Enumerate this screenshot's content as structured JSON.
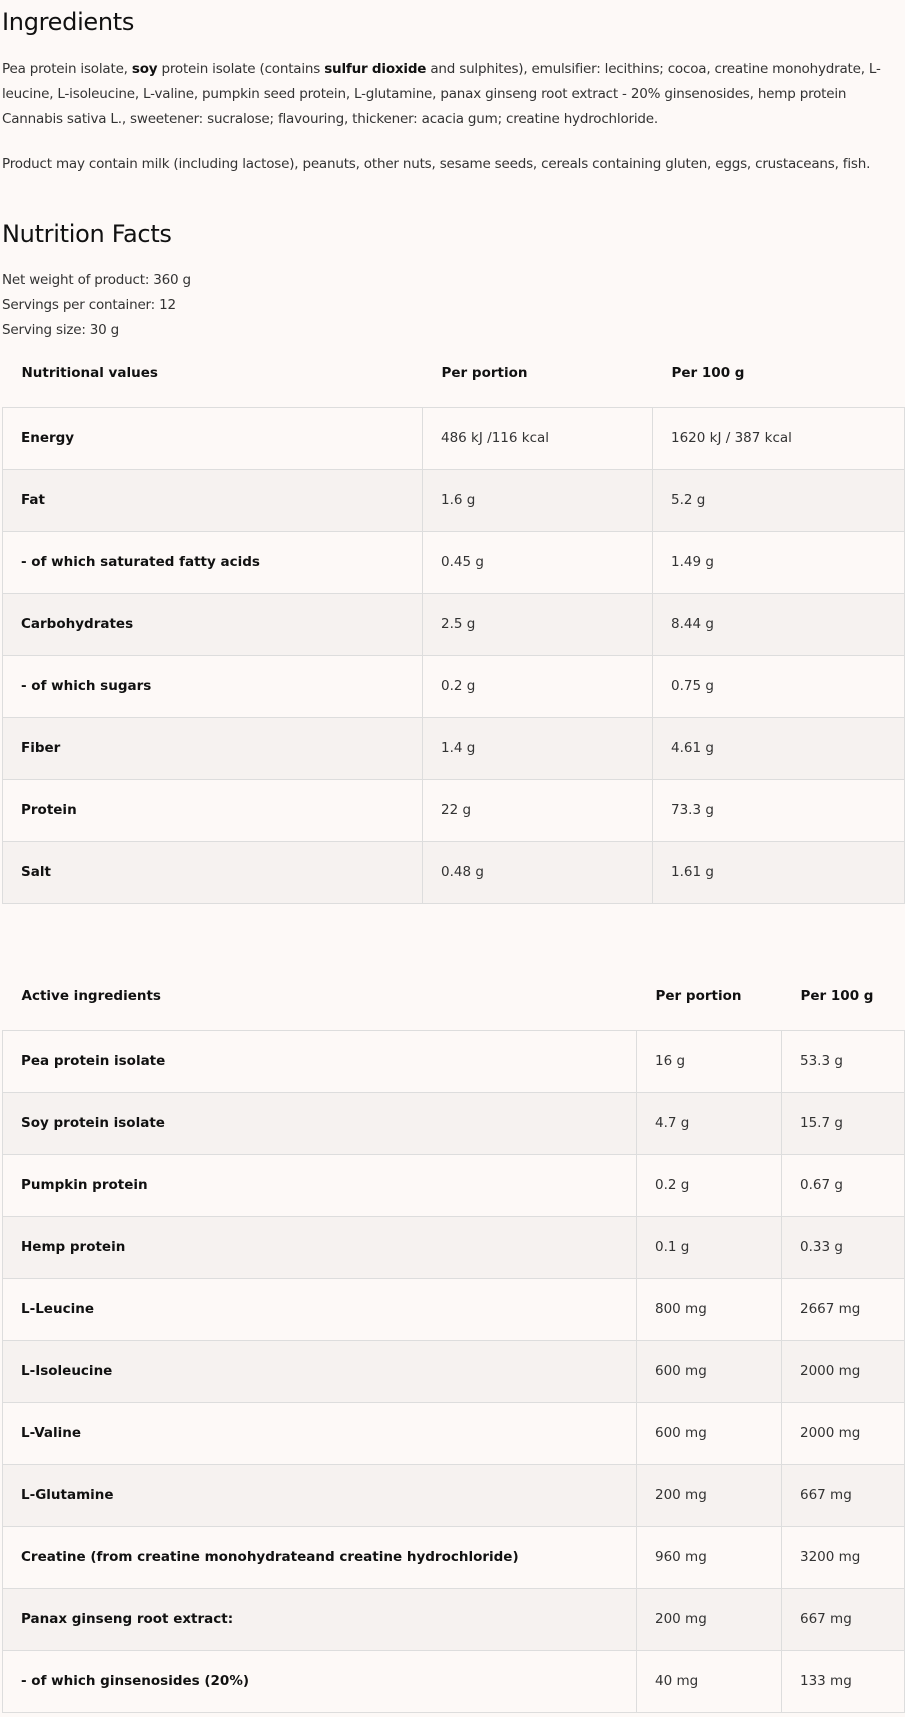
{
  "ingredients": {
    "title": "Ingredients",
    "text": [
      {
        "t": "Pea protein isolate, ",
        "b": false
      },
      {
        "t": "soy",
        "b": true
      },
      {
        "t": " protein isolate (contains ",
        "b": false
      },
      {
        "t": "sulfur dioxide",
        "b": true
      },
      {
        "t": " and sulphites), emulsifier: lecithins; cocoa, creatine monohydrate, L-leucine, L-isoleucine, L-valine, pumpkin seed protein, L-glutamine, panax ginseng root extract - 20% ginsenosides, hemp protein Cannabis sativa L., sweetener: sucralose; flavouring, thickener: acacia gum; creatine hydrochloride.",
        "b": false
      }
    ],
    "allergens": "Product may contain milk (including lactose), peanuts, other nuts, sesame seeds, cereals containing gluten, eggs, crustaceans, fish."
  },
  "nutrition": {
    "title": "Nutrition Facts",
    "net_weight": "Net weight of product: 360 g",
    "servings": "Servings per container: 12",
    "serving_size": "Serving size: 30 g",
    "headers": [
      "Nutritional values",
      "Per portion",
      "Per 100 g"
    ],
    "rows": [
      [
        "Energy",
        "486 kJ /116 kcal",
        "1620 kJ / 387 kcal"
      ],
      [
        "Fat",
        "1.6 g",
        "5.2 g"
      ],
      [
        "- of which saturated fatty acids",
        "0.45 g",
        "1.49 g"
      ],
      [
        "Carbohydrates",
        "2.5 g",
        "8.44 g"
      ],
      [
        "- of which sugars",
        "0.2 g",
        "0.75 g"
      ],
      [
        "Fiber",
        "1.4 g",
        "4.61 g"
      ],
      [
        "Protein",
        "22 g",
        "73.3 g"
      ],
      [
        "Salt",
        "0.48 g",
        "1.61 g"
      ]
    ]
  },
  "active": {
    "headers": [
      "Active ingredients",
      "Per portion",
      "Per 100 g"
    ],
    "rows": [
      [
        "Pea protein isolate",
        "16 g",
        "53.3 g"
      ],
      [
        "Soy protein isolate",
        "4.7 g",
        "15.7 g"
      ],
      [
        "Pumpkin protein",
        "0.2 g",
        "0.67 g"
      ],
      [
        "Hemp protein",
        "0.1 g",
        "0.33 g"
      ],
      [
        "L-Leucine",
        "800 mg",
        "2667 mg"
      ],
      [
        "L-Isoleucine",
        "600 mg",
        "2000 mg"
      ],
      [
        "L-Valine",
        "600 mg",
        "2000 mg"
      ],
      [
        "L-Glutamine",
        "200 mg",
        "667 mg"
      ],
      [
        "Creatine (from creatine monohydrateand creatine hydrochloride)",
        "960 mg",
        "3200 mg"
      ],
      [
        "Panax ginseng root extract:",
        "200 mg",
        "667 mg"
      ],
      [
        "- of which ginsenosides (20%)",
        "40 mg",
        "133 mg"
      ]
    ]
  }
}
